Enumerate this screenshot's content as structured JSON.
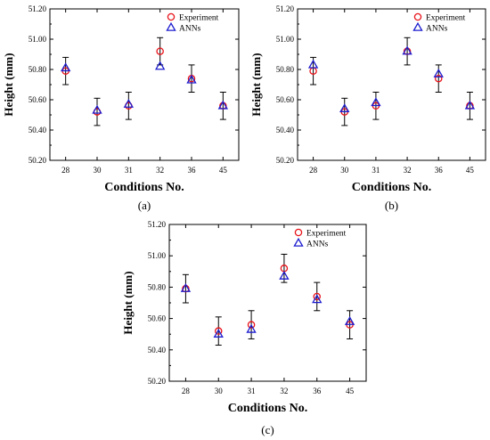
{
  "chart_data": [
    {
      "type": "scatter",
      "caption": "(a)",
      "xlabel": "Conditions No.",
      "ylabel": "Height (mm)",
      "ylim": [
        50.2,
        51.2
      ],
      "yticks": [
        "50.20",
        "50.40",
        "50.60",
        "50.80",
        "51.00",
        "51.20"
      ],
      "categories": [
        "28",
        "30",
        "31",
        "32",
        "36",
        "45"
      ],
      "legend": "top-right",
      "series": [
        {
          "name": "Experiment",
          "marker": "circle",
          "color": "#e8141b",
          "values": [
            50.79,
            50.52,
            50.56,
            50.92,
            50.74,
            50.56
          ],
          "err": [
            0.09,
            0.09,
            0.09,
            0.09,
            0.09,
            0.09
          ]
        },
        {
          "name": "ANNs",
          "marker": "triangle",
          "color": "#1c1ccf",
          "values": [
            50.81,
            50.53,
            50.57,
            50.82,
            50.73,
            50.56
          ]
        }
      ]
    },
    {
      "type": "scatter",
      "caption": "(b)",
      "xlabel": "Conditions No.",
      "ylabel": "Height (mm)",
      "ylim": [
        50.2,
        51.2
      ],
      "yticks": [
        "50.20",
        "50.40",
        "50.60",
        "50.80",
        "51.00",
        "51.20"
      ],
      "categories": [
        "28",
        "30",
        "31",
        "32",
        "36",
        "45"
      ],
      "legend": "top-right",
      "series": [
        {
          "name": "Experiment",
          "marker": "circle",
          "color": "#e8141b",
          "values": [
            50.79,
            50.52,
            50.56,
            50.92,
            50.74,
            50.56
          ],
          "err": [
            0.09,
            0.09,
            0.09,
            0.09,
            0.09,
            0.09
          ]
        },
        {
          "name": "ANNs",
          "marker": "triangle",
          "color": "#1c1ccf",
          "values": [
            50.83,
            50.54,
            50.58,
            50.92,
            50.77,
            50.56
          ]
        }
      ]
    },
    {
      "type": "scatter",
      "caption": "(c)",
      "xlabel": "Conditions No.",
      "ylabel": "Height (mm)",
      "ylim": [
        50.2,
        51.2
      ],
      "yticks": [
        "50.20",
        "50.40",
        "50.60",
        "50.80",
        "51.00",
        "51.20"
      ],
      "categories": [
        "28",
        "30",
        "31",
        "32",
        "36",
        "45"
      ],
      "legend": "top-right",
      "series": [
        {
          "name": "Experiment",
          "marker": "circle",
          "color": "#e8141b",
          "values": [
            50.79,
            50.52,
            50.56,
            50.92,
            50.74,
            50.56
          ],
          "err": [
            0.09,
            0.09,
            0.09,
            0.09,
            0.09,
            0.09
          ]
        },
        {
          "name": "ANNs",
          "marker": "triangle",
          "color": "#1c1ccf",
          "values": [
            50.79,
            50.5,
            50.53,
            50.87,
            50.72,
            50.58
          ]
        }
      ]
    }
  ]
}
